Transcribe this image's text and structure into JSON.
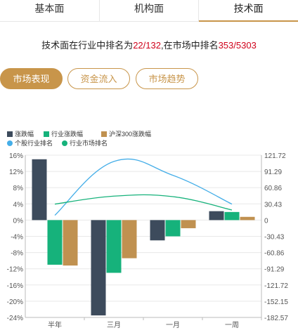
{
  "tabs": [
    {
      "label": "基本面"
    },
    {
      "label": "机构面"
    },
    {
      "label": "技术面"
    }
  ],
  "rank": {
    "prefix": "技术面在行业中排名为",
    "industry": "22/132",
    "middle": ",在市场中排名",
    "market": "353/5303"
  },
  "buttons": [
    {
      "label": "市场表现"
    },
    {
      "label": "资金流入"
    },
    {
      "label": "市场趋势"
    }
  ],
  "colors": {
    "stock": "#3d4b5c",
    "industry": "#16b27b",
    "hs300": "#c09150",
    "stock_rank_line": "#45aee8",
    "industry_rank_line": "#16b27b",
    "accent": "#c8954a"
  },
  "chart_data": {
    "type": "bar",
    "categories": [
      "半年",
      "三月",
      "一月",
      "一周"
    ],
    "series": [
      {
        "name": "涨跌幅",
        "values": [
          15,
          -23.5,
          -5,
          2.2
        ]
      },
      {
        "name": "行业涨跌幅",
        "values": [
          -11,
          -13,
          -4,
          2
        ]
      },
      {
        "name": "沪深300涨跌幅",
        "values": [
          -11.2,
          -9.4,
          -2,
          0.8
        ]
      }
    ],
    "line_series": [
      {
        "name": "个股行业排名",
        "values": [
          9,
          110,
          84,
          30
        ]
      },
      {
        "name": "行业市场排名",
        "values": [
          30,
          45,
          44,
          19
        ]
      }
    ],
    "left_axis": {
      "ticks": [
        "16%",
        "12%",
        "8%",
        "4%",
        "0%",
        "-4%",
        "-8%",
        "-12%",
        "-16%",
        "-20%",
        "-24%"
      ],
      "range": [
        -24,
        16
      ]
    },
    "right_axis": {
      "ticks": [
        "121.72",
        "91.29",
        "60.86",
        "30.43",
        "0",
        "-30.43",
        "-60.86",
        "-91.29",
        "-121.72",
        "-152.15",
        "-182.57"
      ],
      "range": [
        -182.57,
        121.72
      ]
    }
  }
}
